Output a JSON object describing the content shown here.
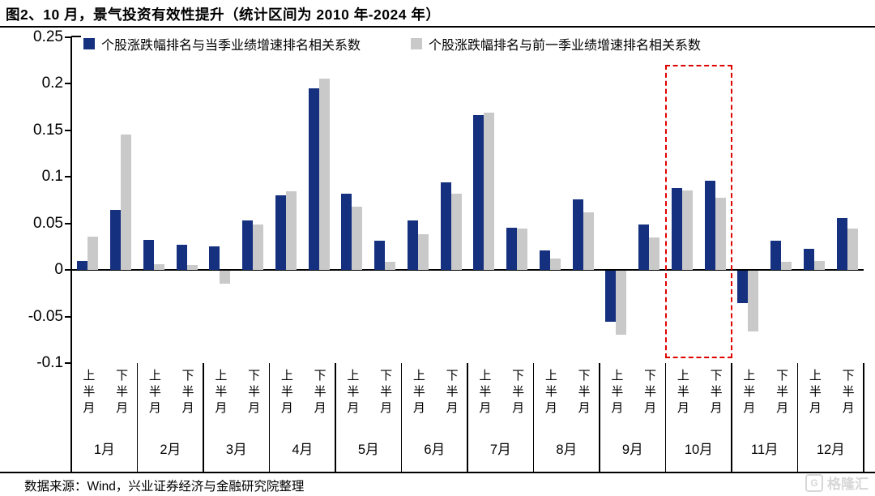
{
  "title": "图2、10 月，景气投资有效性提升（统计区间为 2010 年-2024 年）",
  "source_note": "数据来源：Wind，兴业证券经济与金融研究院整理",
  "watermark": "格隆汇",
  "colors": {
    "series1": "#14307f",
    "series2": "#c9c9c9",
    "highlight": "#e00000",
    "axis": "#000000"
  },
  "chart_data": {
    "type": "bar",
    "title": "图2、10 月，景气投资有效性提升（统计区间为 2010 年-2024 年）",
    "months": [
      "1月",
      "2月",
      "3月",
      "4月",
      "5月",
      "6月",
      "7月",
      "8月",
      "9月",
      "10月",
      "11月",
      "12月"
    ],
    "half_month_labels": [
      "上半月",
      "下半月"
    ],
    "categories": [
      "1月上半月",
      "1月下半月",
      "2月上半月",
      "2月下半月",
      "3月上半月",
      "3月下半月",
      "4月上半月",
      "4月下半月",
      "5月上半月",
      "5月下半月",
      "6月上半月",
      "6月下半月",
      "7月上半月",
      "7月下半月",
      "8月上半月",
      "8月下半月",
      "9月上半月",
      "9月下半月",
      "10月上半月",
      "10月下半月",
      "11月上半月",
      "11月下半月",
      "12月上半月",
      "12月下半月"
    ],
    "series": [
      {
        "name": "个股涨跌幅排名与当季业绩增速排名相关系数",
        "color": "#14307f",
        "values": [
          0.01,
          0.064,
          0.032,
          0.027,
          0.025,
          0.053,
          0.08,
          0.195,
          0.082,
          0.031,
          0.053,
          0.094,
          0.166,
          0.045,
          0.021,
          0.076,
          -0.055,
          0.049,
          0.088,
          0.096,
          -0.035,
          0.031,
          0.023,
          0.056
        ]
      },
      {
        "name": "个股涨跌幅排名与前一季业绩增速排名相关系数",
        "color": "#c9c9c9",
        "values": [
          0.036,
          0.145,
          0.006,
          0.005,
          -0.014,
          0.049,
          0.084,
          0.205,
          0.068,
          0.009,
          0.038,
          0.082,
          0.169,
          0.044,
          0.012,
          0.062,
          -0.069,
          0.035,
          0.085,
          0.077,
          -0.065,
          0.009,
          0.01,
          0.044
        ]
      }
    ],
    "ylim": [
      -0.1,
      0.25
    ],
    "ytick_step": 0.05,
    "ytick_labels": [
      "0.25",
      "0.2",
      "0.15",
      "0.1",
      "0.05",
      "0",
      "-0.05",
      "-0.1"
    ],
    "grid": false,
    "legend_position": "top",
    "highlight": {
      "type": "red-dashed-box",
      "month": "10月",
      "month_index": 9
    }
  }
}
